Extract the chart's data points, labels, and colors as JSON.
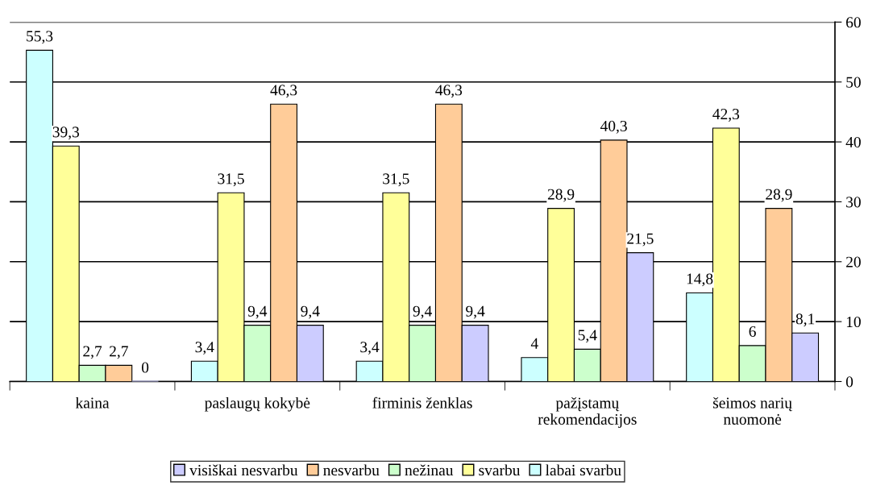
{
  "chart_data": {
    "type": "bar",
    "categories": [
      "kaina",
      "paslaugų kokybė",
      "firminis ženklas",
      "pažįstamų\nrekomendacijos",
      "šeimos narių\nnuomonė"
    ],
    "series": [
      {
        "name": "labai svarbu",
        "color": "#ccffff",
        "values": [
          55.3,
          3.4,
          3.4,
          4,
          14.8
        ],
        "value_labels": [
          "55,3",
          "3,4",
          "3,4",
          "4",
          "14,8"
        ]
      },
      {
        "name": "svarbu",
        "color": "#ffff99",
        "values": [
          39.3,
          31.5,
          31.5,
          28.9,
          42.3
        ],
        "value_labels": [
          "39,3",
          "31,5",
          "31,5",
          "28,9",
          "42,3"
        ]
      },
      {
        "name": "nežinau",
        "color": "#ccffcc",
        "values": [
          2.7,
          9.4,
          9.4,
          5.4,
          6
        ],
        "value_labels": [
          "2,7",
          "9,4",
          "9,4",
          "5,4",
          "6"
        ]
      },
      {
        "name": "nesvarbu",
        "color": "#ffcc99",
        "values": [
          2.7,
          46.3,
          46.3,
          40.3,
          28.9
        ],
        "value_labels": [
          "2,7",
          "46,3",
          "46,3",
          "40,3",
          "28,9"
        ]
      },
      {
        "name": "visiškai nesvarbu",
        "color": "#ccccff",
        "values": [
          0,
          9.4,
          9.4,
          21.5,
          8.1
        ],
        "value_labels": [
          "0",
          "9,4",
          "9,4",
          "21,5",
          "8,1"
        ]
      }
    ],
    "ylim": [
      0,
      60
    ],
    "yticks": [
      0,
      10,
      20,
      30,
      40,
      50,
      60
    ],
    "grid": "y",
    "legend": "bottom"
  }
}
